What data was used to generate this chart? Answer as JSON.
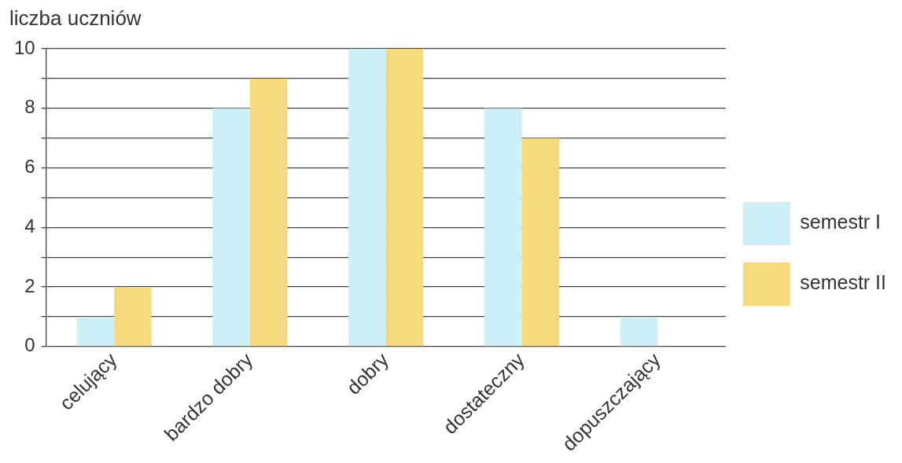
{
  "chart_data": {
    "type": "bar",
    "ylabel": "liczba uczniów",
    "categories": [
      "celujący",
      "bardzo dobry",
      "dobry",
      "dostateczny",
      "dopuszczający"
    ],
    "series": [
      {
        "name": "semestr I",
        "color": "#ccf0f6",
        "values": [
          1,
          8,
          10,
          8,
          1
        ]
      },
      {
        "name": "semestr II",
        "color": "#f6d97c",
        "values": [
          2,
          9,
          10,
          7,
          0
        ]
      }
    ],
    "ylim": [
      0,
      10
    ],
    "yticks": [
      0,
      {
        "value": 1,
        "label": null
      },
      2,
      {
        "value": 3,
        "label": null
      },
      4,
      {
        "value": 5,
        "label": null
      },
      6,
      {
        "value": 7,
        "label": null
      },
      8,
      {
        "value": 9,
        "label": null
      },
      10
    ],
    "grid": "y",
    "legend": "right"
  }
}
